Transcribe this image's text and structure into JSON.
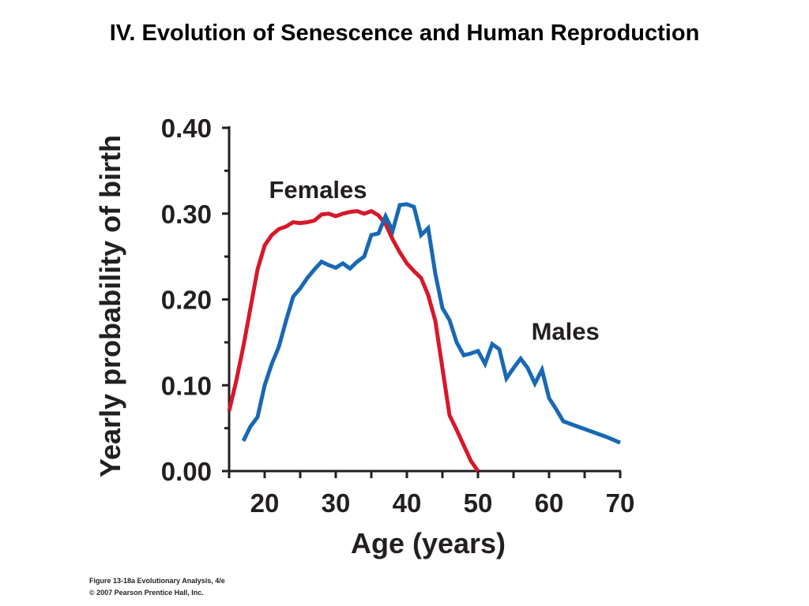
{
  "slide": {
    "title": "IV. Evolution of Senescence and Human Reproduction",
    "caption_line1": "Figure 13-18a  Evolutionary Analysis, 4/e",
    "caption_line2": "© 2007 Pearson Prentice Hall, Inc."
  },
  "chart_data": {
    "type": "line",
    "title": "",
    "xlabel": "Age (years)",
    "ylabel": "Yearly probability of birth",
    "xlim": [
      15,
      70
    ],
    "ylim": [
      0,
      0.4
    ],
    "x_ticks": [
      20,
      30,
      40,
      50,
      60,
      70
    ],
    "y_ticks": [
      0.0,
      0.1,
      0.2,
      0.3,
      0.4
    ],
    "y_tick_labels": [
      "0.00",
      "0.10",
      "0.20",
      "0.30",
      "0.40"
    ],
    "grid": false,
    "series": [
      {
        "name": "Females",
        "color": "#d7182a",
        "x": [
          15,
          16,
          17,
          18,
          19,
          20,
          21,
          22,
          23,
          24,
          25,
          26,
          27,
          28,
          29,
          30,
          31,
          32,
          33,
          34,
          35,
          36,
          37,
          38,
          39,
          40,
          41,
          42,
          43,
          44,
          45,
          46,
          47,
          48,
          49,
          50
        ],
        "y": [
          0.07,
          0.105,
          0.145,
          0.19,
          0.235,
          0.263,
          0.275,
          0.282,
          0.285,
          0.29,
          0.289,
          0.29,
          0.292,
          0.299,
          0.3,
          0.297,
          0.3,
          0.302,
          0.303,
          0.3,
          0.303,
          0.298,
          0.288,
          0.27,
          0.255,
          0.242,
          0.233,
          0.225,
          0.205,
          0.175,
          0.12,
          0.065,
          0.048,
          0.03,
          0.012,
          0.0
        ]
      },
      {
        "name": "Males",
        "color": "#1868b4",
        "x": [
          17,
          18,
          19,
          20,
          21,
          22,
          23,
          24,
          25,
          26,
          27,
          28,
          29,
          30,
          31,
          32,
          33,
          34,
          35,
          36,
          37,
          38,
          39,
          40,
          41,
          42,
          43,
          44,
          45,
          46,
          47,
          48,
          49,
          50,
          51,
          52,
          53,
          54,
          55,
          56,
          57,
          58,
          59,
          60,
          61,
          62,
          64,
          66,
          68,
          70
        ],
        "y": [
          0.035,
          0.052,
          0.063,
          0.1,
          0.125,
          0.145,
          0.175,
          0.203,
          0.213,
          0.225,
          0.235,
          0.244,
          0.24,
          0.237,
          0.242,
          0.236,
          0.244,
          0.25,
          0.275,
          0.277,
          0.297,
          0.28,
          0.31,
          0.311,
          0.308,
          0.275,
          0.283,
          0.23,
          0.19,
          0.176,
          0.15,
          0.135,
          0.137,
          0.14,
          0.125,
          0.148,
          0.142,
          0.108,
          0.12,
          0.131,
          0.12,
          0.102,
          0.118,
          0.085,
          0.072,
          0.058,
          0.052,
          0.046,
          0.04,
          0.033
        ]
      }
    ],
    "annotations": [
      {
        "text": "Females",
        "series": "Females"
      },
      {
        "text": "Males",
        "series": "Males"
      }
    ]
  }
}
